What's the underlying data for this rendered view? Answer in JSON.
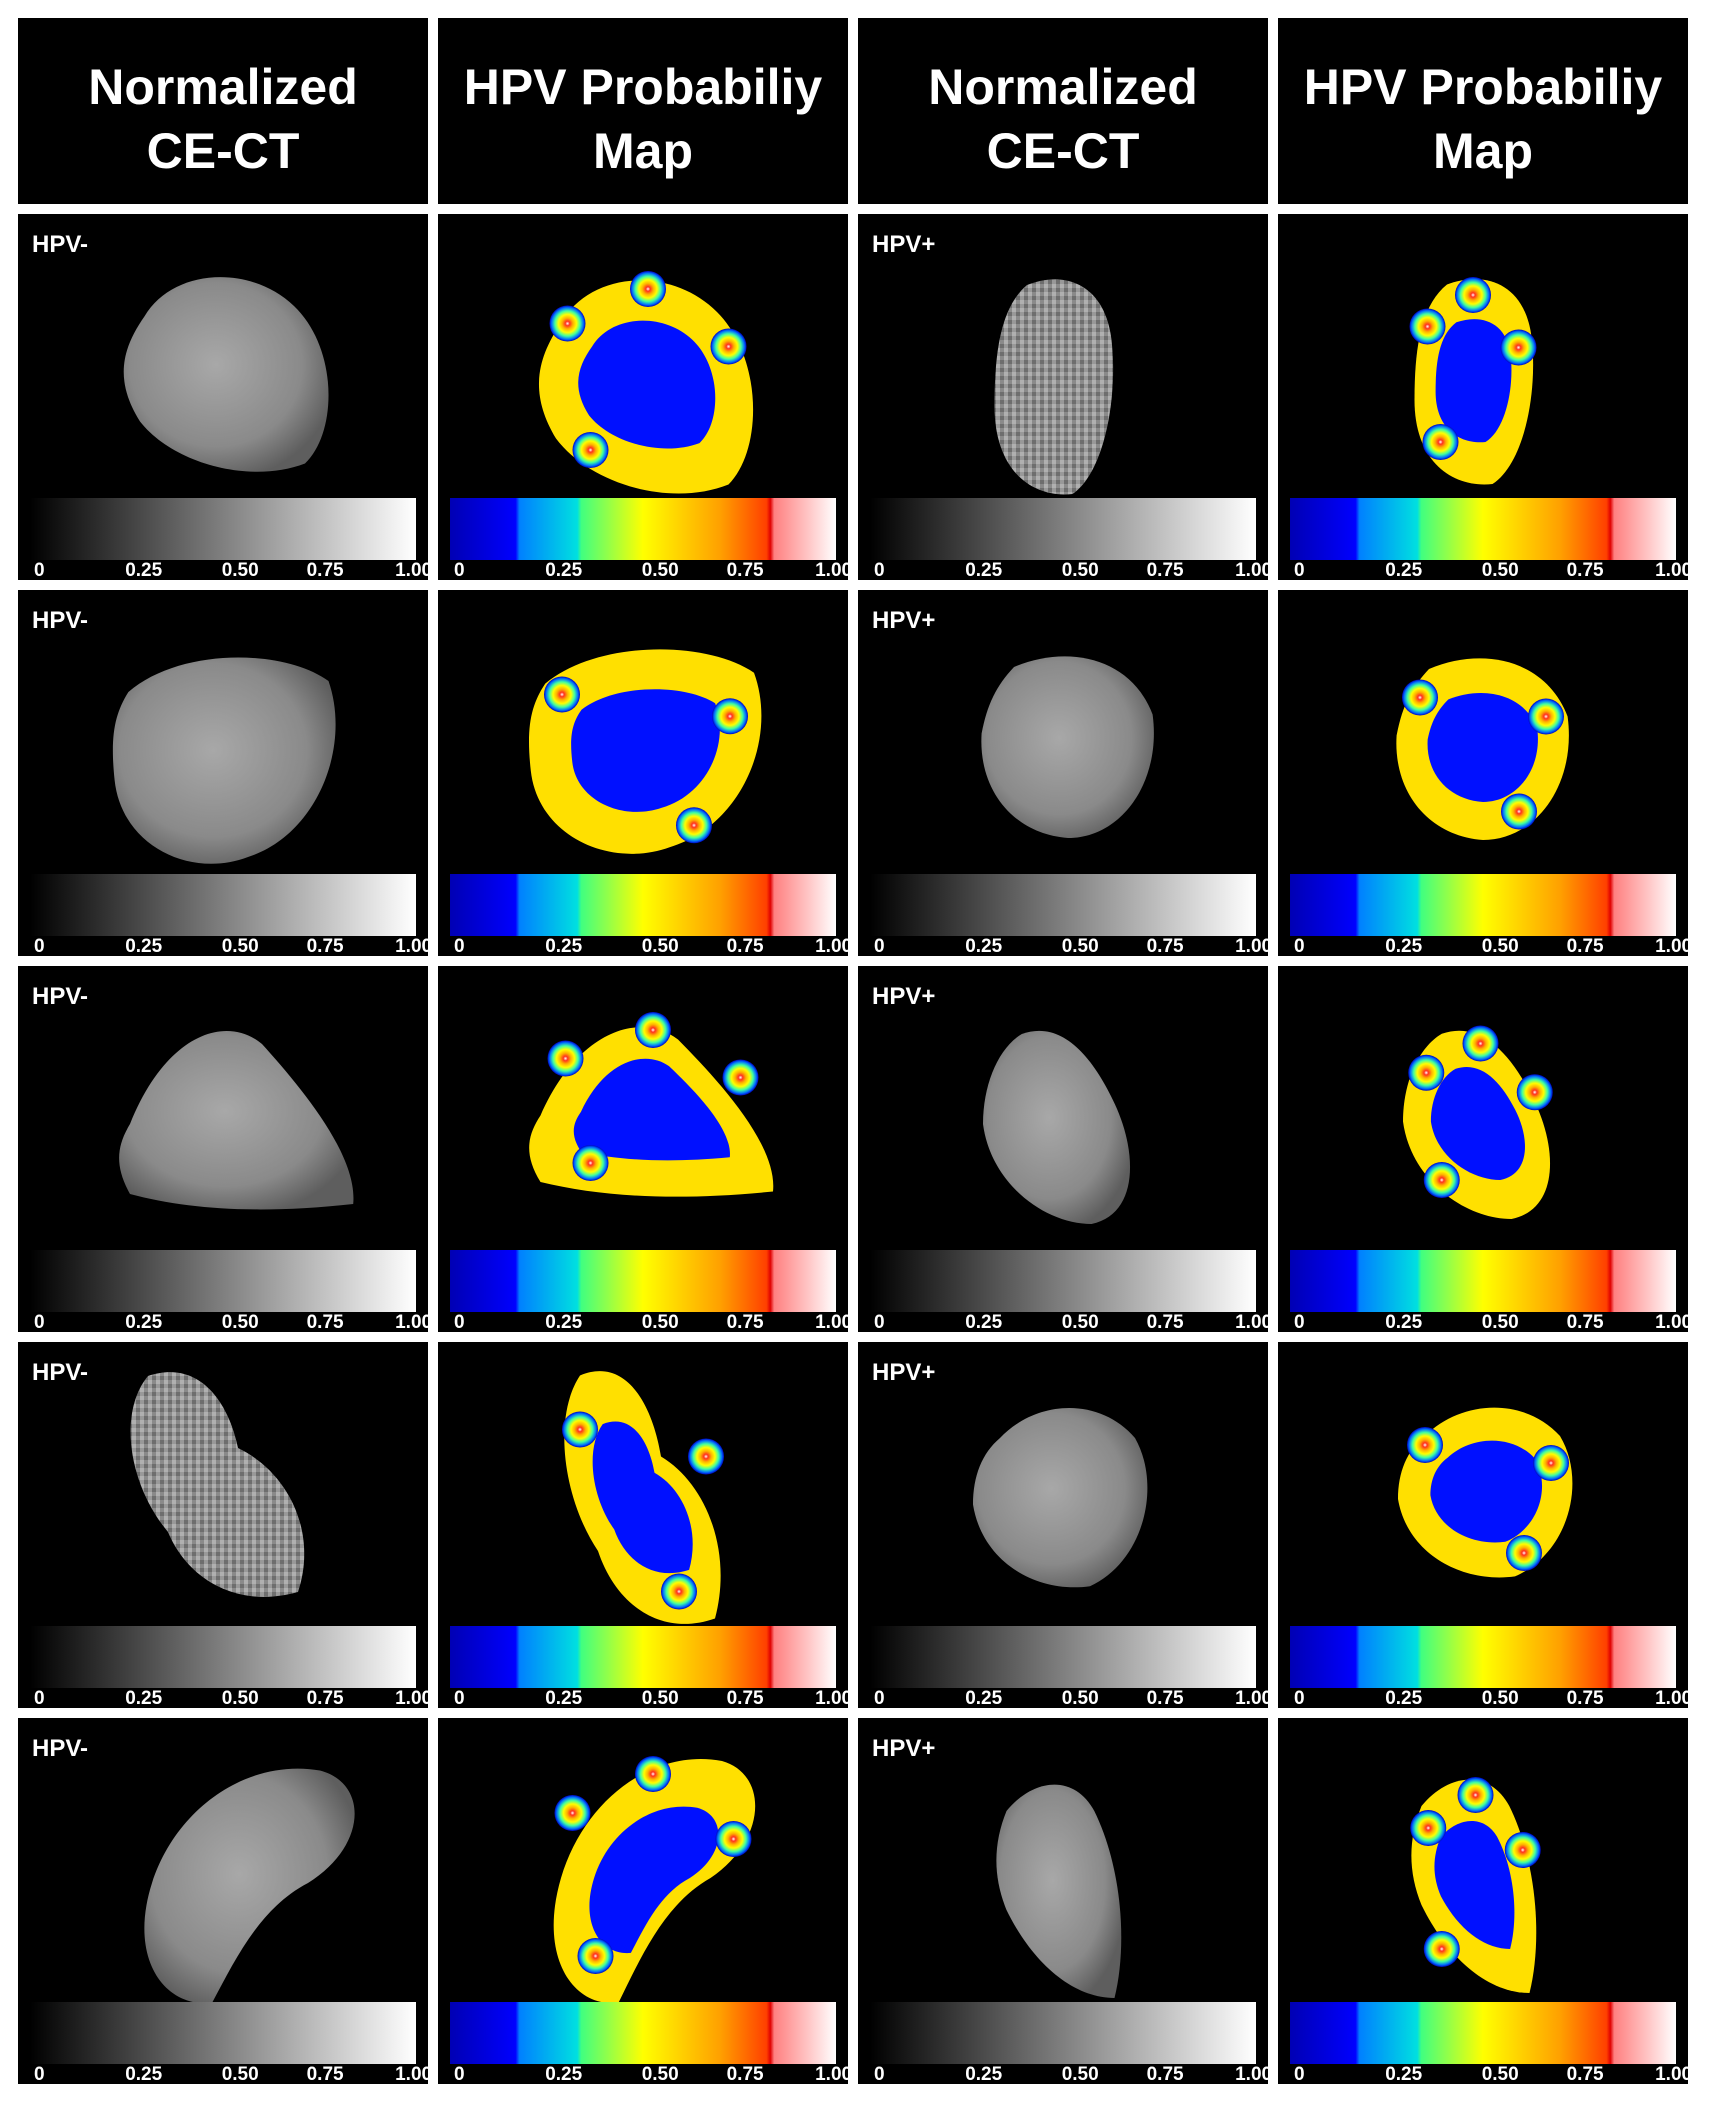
{
  "headers": [
    [
      "Normalized",
      "CE-CT"
    ],
    [
      "HPV Probabiliy",
      "Map"
    ],
    [
      "Normalized",
      "CE-CT"
    ],
    [
      "HPV Probabiliy",
      "Map"
    ]
  ],
  "scale_ticks": [
    "0",
    "0.25",
    "0.50",
    "0.75",
    "1.00"
  ],
  "colors": {
    "background": "#000000",
    "grid_lines": "#ffffff",
    "text": "#ffffff",
    "jet_stops": [
      "#0000b4",
      "#0000ff",
      "#00a0ff",
      "#00ffc0",
      "#80ff00",
      "#ffff00",
      "#ffa000",
      "#ff4000",
      "#c00000",
      "#ffb0b0",
      "#ffffff"
    ]
  },
  "rows": [
    {
      "left_label": "HPV-",
      "right_label": "HPV+"
    },
    {
      "left_label": "HPV-",
      "right_label": "HPV+"
    },
    {
      "left_label": "HPV-",
      "right_label": "HPV+"
    },
    {
      "left_label": "HPV-",
      "right_label": "HPV+"
    },
    {
      "left_label": "HPV-",
      "right_label": "HPV+"
    }
  ]
}
